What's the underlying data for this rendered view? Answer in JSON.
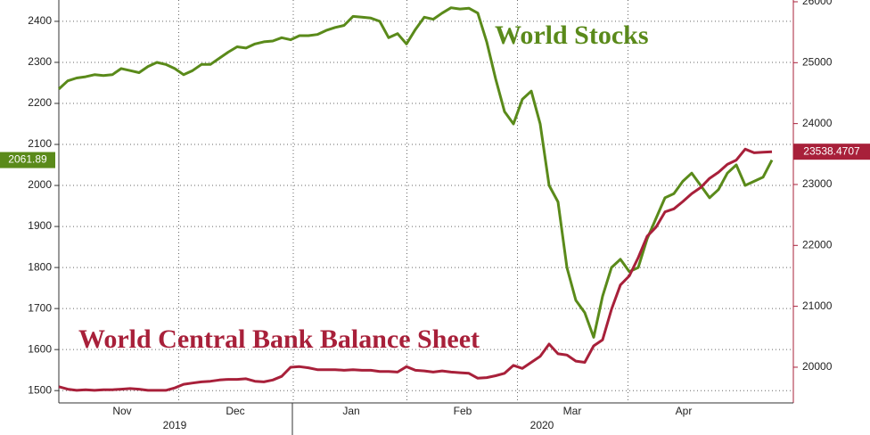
{
  "chart_data": {
    "type": "line",
    "categories": [
      null,
      null,
      null,
      null,
      null,
      null,
      null,
      null,
      null,
      null,
      null,
      null,
      null,
      null,
      null,
      null,
      null,
      null,
      null,
      null,
      null,
      null,
      null,
      null,
      null,
      null,
      null,
      null,
      null,
      null,
      null,
      null,
      null,
      null,
      null,
      null,
      null,
      null,
      null,
      null,
      null,
      null,
      null,
      null,
      null,
      null,
      null,
      null,
      null,
      null,
      null,
      null,
      null,
      null,
      null,
      null,
      null,
      null,
      null,
      null,
      null,
      null,
      null,
      null,
      null,
      null,
      null,
      null,
      null,
      null,
      null,
      null,
      null,
      null,
      null,
      null,
      null,
      null,
      null,
      null,
      null
    ],
    "xticks": [
      {
        "value": 7.1,
        "label": "Nov"
      },
      {
        "value": 19.8,
        "label": "Dec"
      },
      {
        "value": 32.8,
        "label": "Jan"
      },
      {
        "value": 45.3,
        "label": "Feb"
      },
      {
        "value": 57.6,
        "label": "Mar"
      },
      {
        "value": 70.1,
        "label": "Apr"
      }
    ],
    "xyears": [
      {
        "value": 13,
        "label": "2019"
      },
      {
        "value": 54.2,
        "label": "2020"
      }
    ],
    "ylim": [
      1470,
      2452
    ],
    "yticks": [
      1500,
      1600,
      1700,
      1800,
      1900,
      2000,
      2100,
      2200,
      2300,
      2400
    ],
    "y2lim": [
      19414,
      26029
    ],
    "y2ticks": [
      20000,
      21000,
      22000,
      23000,
      24000,
      25000,
      26000
    ],
    "grid": true,
    "series": [
      {
        "name": "World Stocks",
        "color": "#5a8a1a",
        "values": [
          2235,
          2255,
          2262,
          2265,
          2270,
          2268,
          2270,
          2285,
          2280,
          2275,
          2290,
          2300,
          2295,
          2285,
          2270,
          2280,
          2295,
          2295,
          2310,
          2325,
          2338,
          2335,
          2345,
          2350,
          2352,
          2360,
          2355,
          2365,
          2365,
          2368,
          2378,
          2385,
          2390,
          2412,
          2410,
          2408,
          2400,
          2360,
          2370,
          2345,
          2380,
          2410,
          2405,
          2420,
          2433,
          2430,
          2432,
          2420,
          2350,
          2260,
          2180,
          2150,
          2210,
          2230,
          2150,
          2000,
          1960,
          1800,
          1720,
          1690,
          1630,
          1730,
          1800,
          1820,
          1790,
          1800,
          1870,
          1920,
          1970,
          1980,
          2010,
          2030,
          2000,
          1970,
          1990,
          2030,
          2050,
          2000,
          2010,
          2020,
          2061.89
        ]
      },
      {
        "name": "World Central Bank Balance Sheet",
        "color": "#a8203a",
        "axis": "y2",
        "values": [
          19680,
          19640,
          19620,
          19630,
          19620,
          19630,
          19630,
          19640,
          19650,
          19640,
          19620,
          19620,
          19620,
          19660,
          19720,
          19740,
          19760,
          19770,
          19790,
          19800,
          19800,
          19810,
          19770,
          19760,
          19790,
          19850,
          20000,
          20010,
          19990,
          19960,
          19960,
          19960,
          19950,
          19960,
          19950,
          19950,
          19930,
          19930,
          19920,
          20010,
          19950,
          19940,
          19920,
          19940,
          19920,
          19910,
          19900,
          19820,
          19830,
          19860,
          19900,
          20030,
          19980,
          20080,
          20180,
          20380,
          20220,
          20200,
          20100,
          20080,
          20350,
          20450,
          20950,
          21350,
          21500,
          21800,
          22150,
          22300,
          22550,
          22600,
          22720,
          22850,
          22950,
          23100,
          23200,
          23330,
          23400,
          23580,
          23520,
          23530,
          23538.4707
        ]
      }
    ]
  }
}
